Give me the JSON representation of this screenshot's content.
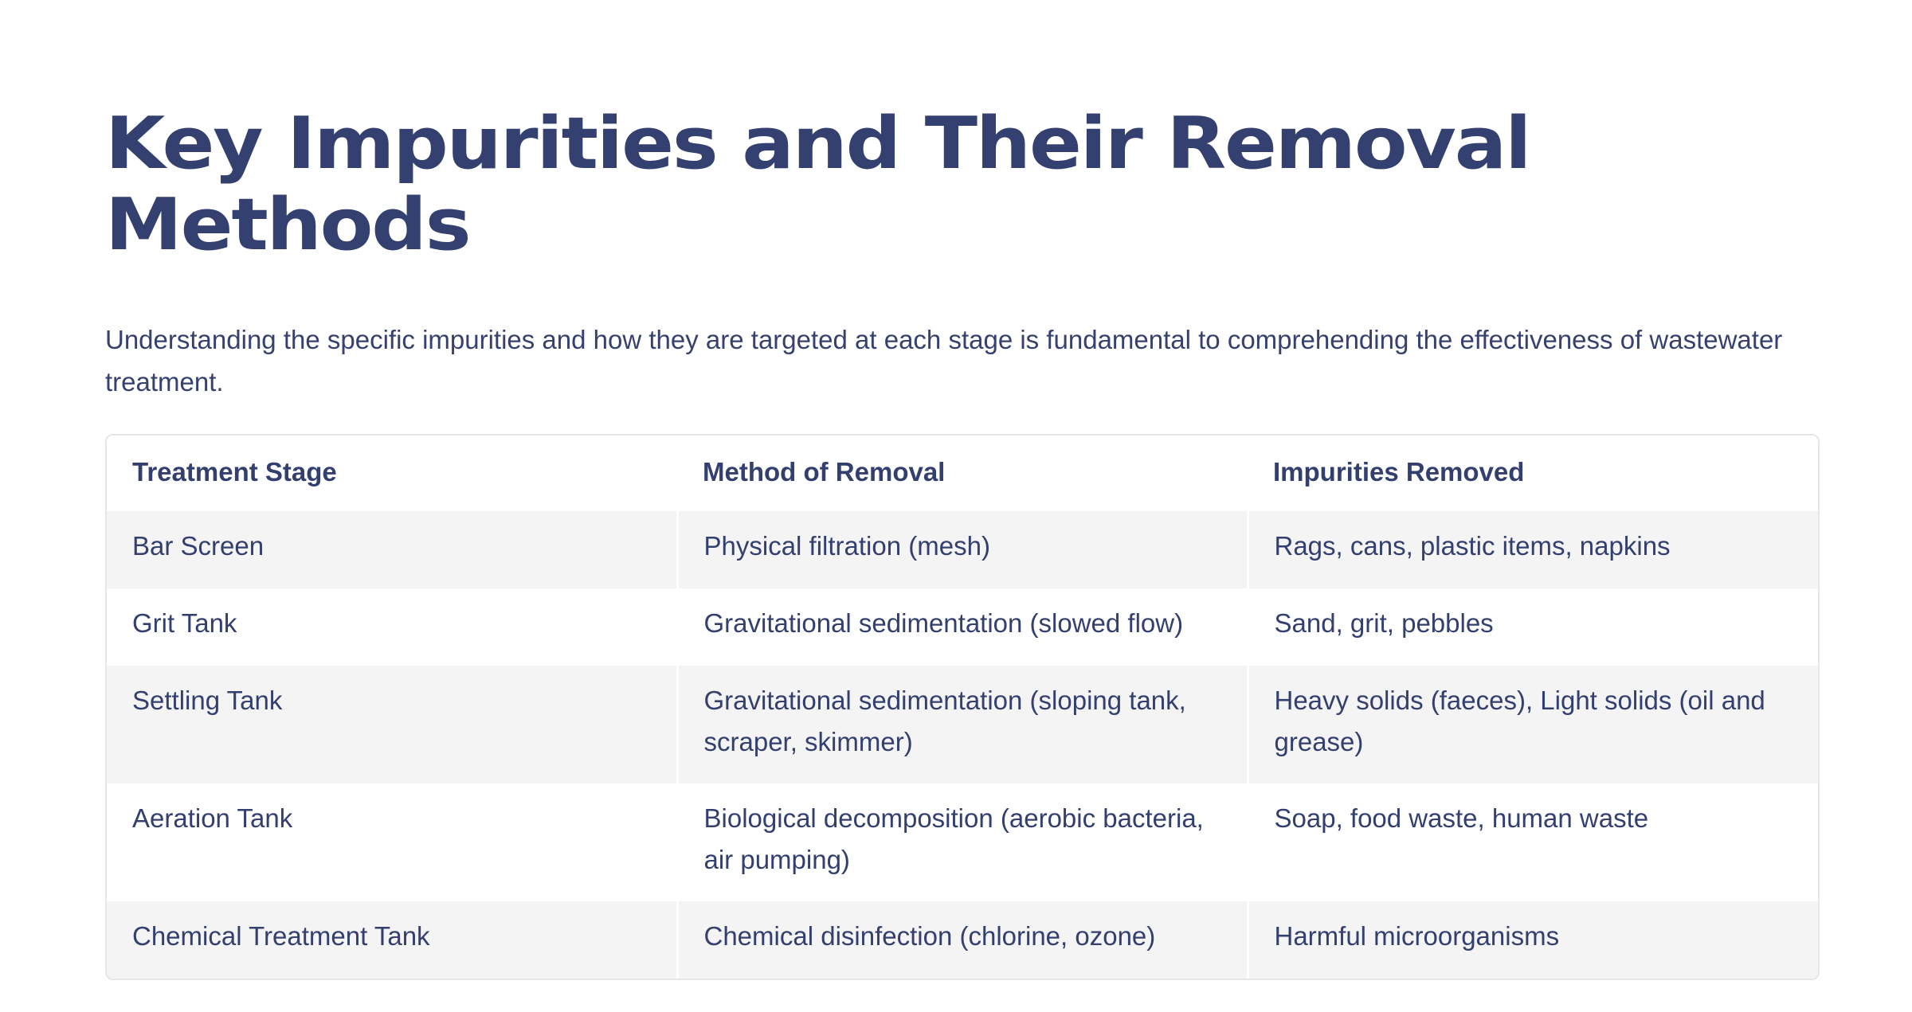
{
  "title": "Key Impurities and Their Removal Methods",
  "intro": "Understanding the specific impurities and how they are targeted at each stage is fundamental to comprehending the effectiveness of wastewater treatment.",
  "table": {
    "headers": [
      "Treatment Stage",
      "Method of Removal",
      "Impurities Removed"
    ],
    "rows": [
      [
        "Bar Screen",
        "Physical filtration (mesh)",
        "Rags, cans, plastic items, napkins"
      ],
      [
        "Grit Tank",
        "Gravitational sedimentation (slowed flow)",
        "Sand, grit, pebbles"
      ],
      [
        "Settling Tank",
        "Gravitational sedimentation (sloping tank, scraper, skimmer)",
        "Heavy solids (faeces), Light solids (oil and grease)"
      ],
      [
        "Aeration Tank",
        "Biological decomposition (aerobic bacteria, air pumping)",
        "Soap, food waste, human waste"
      ],
      [
        "Chemical Treatment Tank",
        "Chemical disinfection (chlorine, ozone)",
        "Harmful microorganisms"
      ]
    ]
  },
  "colors": {
    "text": "#34406f",
    "row_alt_background": "#f4f4f5",
    "table_border": "#e6e6ea"
  }
}
